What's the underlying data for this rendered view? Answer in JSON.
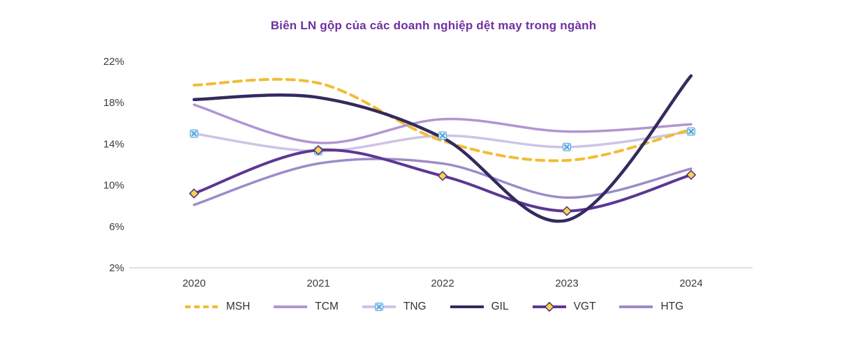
{
  "chart_data": {
    "type": "line",
    "title": "Biên LN gộp của các doanh nghiệp dệt may trong ngành",
    "x_categories": [
      "2020",
      "2021",
      "2022",
      "2023",
      "2024"
    ],
    "y_ticks": [
      2,
      6,
      10,
      14,
      18,
      22
    ],
    "y_tick_suffix": "%",
    "ylim": [
      2,
      22
    ],
    "grid": false,
    "legend_position": "bottom",
    "series": [
      {
        "name": "MSH",
        "color": "#F2BC33",
        "width": 4,
        "z": 4,
        "dash": [
          11,
          8
        ],
        "values": [
          19.7,
          19.9,
          14.3,
          12.4,
          15.4
        ]
      },
      {
        "name": "TCM",
        "color": "#B195D2",
        "width": 3.5,
        "z": 2,
        "values": [
          17.8,
          14.1,
          16.4,
          15.2,
          15.9
        ]
      },
      {
        "name": "TNG",
        "color": "#CEC3E8",
        "width": 3.5,
        "z": 3,
        "marker": {
          "type": "x-square",
          "fill": "#D9EEFA",
          "stroke": "#4FA3D8"
        },
        "values": [
          15.0,
          13.3,
          14.8,
          13.7,
          15.2
        ]
      },
      {
        "name": "GIL",
        "color": "#332B5E",
        "width": 4.5,
        "z": 6,
        "values": [
          18.3,
          18.5,
          14.6,
          6.6,
          20.6
        ]
      },
      {
        "name": "VGT",
        "color": "#5C3794",
        "width": 4,
        "z": 5,
        "marker": {
          "type": "diamond",
          "fill": "#FFD24D",
          "stroke": "#4E2E7E"
        },
        "values": [
          9.2,
          13.4,
          10.9,
          7.5,
          11.0
        ]
      }
    ],
    "series_extra": {
      "name": "HTG",
      "color": "#9D8BC8",
      "width": 3.5,
      "z": 1,
      "values": [
        8.1,
        12.1,
        12.1,
        8.8,
        11.6
      ]
    },
    "axis": {
      "line_color": "#D6D6D6",
      "label_color": "#3B3B3B",
      "label_size": 15
    }
  }
}
